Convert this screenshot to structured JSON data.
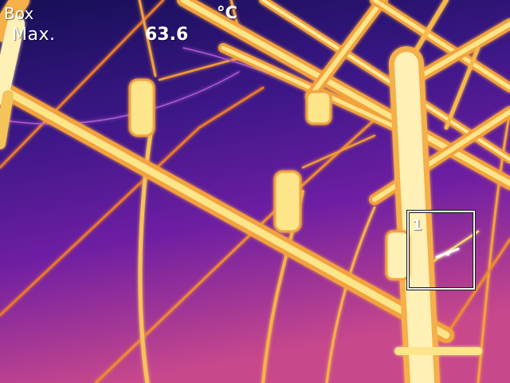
{
  "overlay": {
    "measure_type": "Box",
    "measure_stat": "Max.",
    "max_value": "63.6",
    "unit": "°C",
    "box_index": "1"
  },
  "palette": {
    "cold_top": "#1a1560",
    "cold_mid": "#5a1a9e",
    "warm_bottom": "#c23f88",
    "hot_edge": "#f29a2e",
    "hot_core": "#fff6c8"
  }
}
